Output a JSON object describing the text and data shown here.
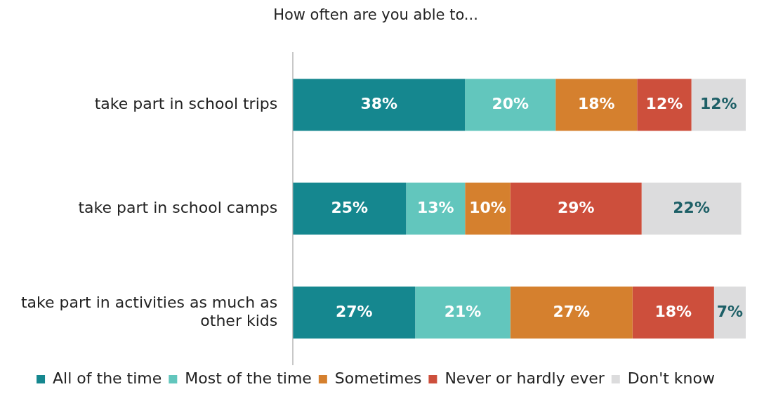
{
  "chart_data": {
    "type": "bar",
    "orientation": "horizontal",
    "stacked": true,
    "title": "How often are you able to...",
    "categories": [
      "take part in school trips",
      "take part in school camps",
      "take part in activities as much as other kids"
    ],
    "series": [
      {
        "name": "All of the time",
        "color": "#15878f",
        "values": [
          38,
          25,
          27
        ],
        "value_labels": [
          "38%",
          "25%",
          "27%"
        ]
      },
      {
        "name": "Most of the time",
        "color": "#62c6bd",
        "values": [
          20,
          13,
          21
        ],
        "value_labels": [
          "20%",
          "13%",
          "21%"
        ]
      },
      {
        "name": "Sometimes",
        "color": "#d5802e",
        "values": [
          18,
          10,
          27
        ],
        "value_labels": [
          "18%",
          "10%",
          "27%"
        ]
      },
      {
        "name": "Never or hardly ever",
        "color": "#cd4f3c",
        "values": [
          12,
          29,
          18
        ],
        "value_labels": [
          "12%",
          "29%",
          "18%"
        ]
      },
      {
        "name": "Don't know",
        "color": "#dcdcdd",
        "values": [
          12,
          22,
          7
        ],
        "value_labels": [
          "12%",
          "22%",
          "7%"
        ]
      }
    ],
    "legend": "bottom",
    "grid": false,
    "tick_labels": "y"
  }
}
